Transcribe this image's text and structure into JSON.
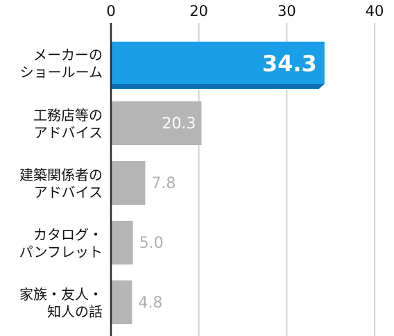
{
  "chart_data": {
    "type": "bar",
    "orientation": "horizontal",
    "categories": [
      [
        "メーカーの",
        "ショールーム"
      ],
      [
        "工務店等の",
        "アドバイス"
      ],
      [
        "建築関係者の",
        "アドバイス"
      ],
      [
        "カタログ・",
        "パンフレット"
      ],
      [
        "家族・友人・",
        "知人の話"
      ]
    ],
    "values": [
      34.3,
      20.3,
      7.8,
      5.0,
      4.8
    ],
    "value_labels": [
      "34.3",
      "20.3",
      "7.8",
      "5.0",
      "4.8"
    ],
    "x_ticks": [
      "0",
      "20",
      "30",
      "40"
    ],
    "xlim": [
      0,
      40
    ],
    "x_axis_position": "top",
    "grid": true,
    "highlight_index": 0,
    "colors": {
      "highlight": "#1a9ee8",
      "highlight_edge": "#0d6fb3",
      "bar": "#b5b5b5",
      "outside_label": "#b0b0b0",
      "inside_label": "#ffffff",
      "axis": "#2b2b2b",
      "grid": "#d0d0d0",
      "text": "#111111"
    }
  }
}
